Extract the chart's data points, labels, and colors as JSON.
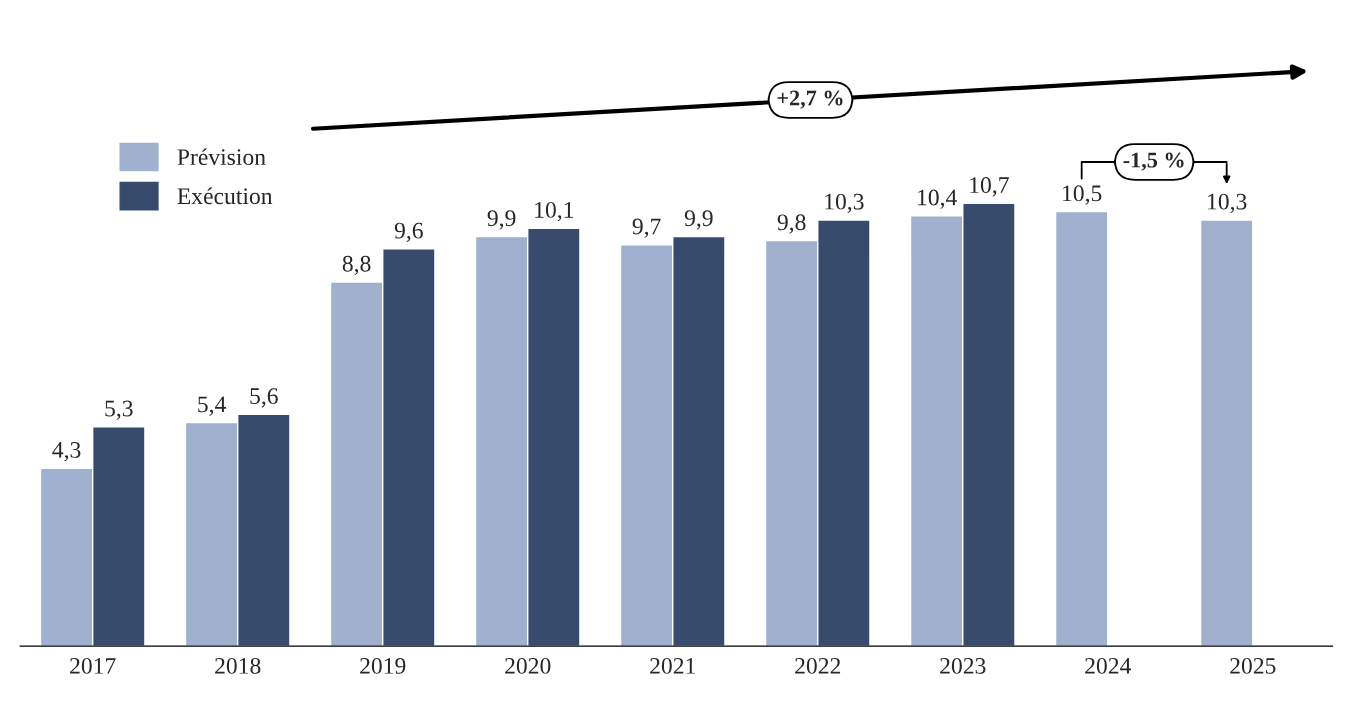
{
  "chart_data": {
    "type": "bar",
    "categories": [
      "2017",
      "2018",
      "2019",
      "2020",
      "2021",
      "2022",
      "2023",
      "2024",
      "2025"
    ],
    "series": [
      {
        "name": "Prévision",
        "color": "#9fb1cf",
        "values": [
          4.3,
          5.4,
          8.8,
          9.9,
          9.7,
          9.8,
          10.4,
          10.5,
          10.3
        ],
        "value_labels": [
          "4,3",
          "5,4",
          "8,8",
          "9,9",
          "9,7",
          "9,8",
          "10,4",
          "10,5",
          "10,3"
        ]
      },
      {
        "name": "Exécution",
        "color": "#374c6c",
        "values": [
          5.3,
          5.6,
          9.6,
          10.1,
          9.9,
          10.3,
          10.7,
          null,
          null
        ],
        "value_labels": [
          "5,3",
          "5,6",
          "9,6",
          "10,1",
          "9,9",
          "10,3",
          "10,7",
          null,
          null
        ]
      }
    ],
    "annotations": [
      "+2,7 %",
      "-1,5 %"
    ],
    "legend": "top left",
    "grid": false
  }
}
